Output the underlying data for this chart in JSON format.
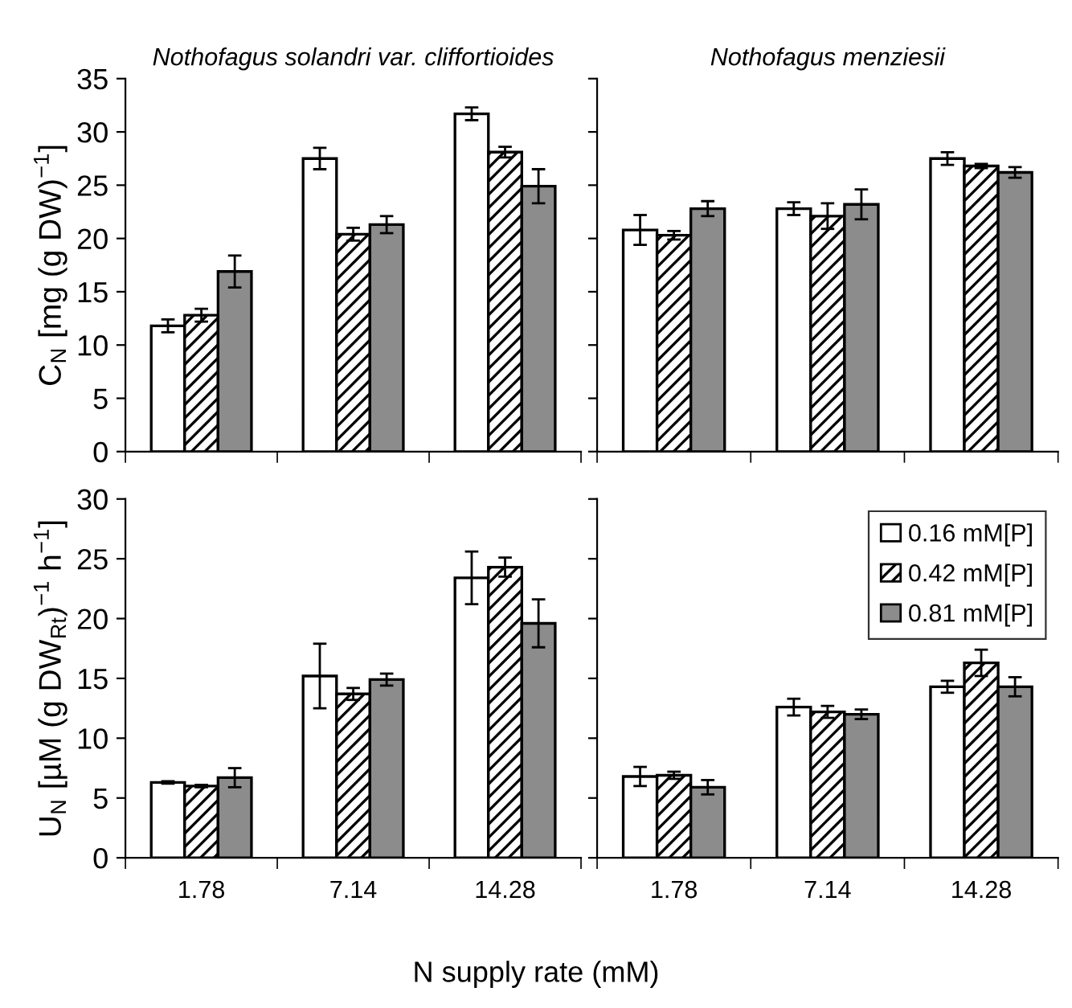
{
  "chart_data": [
    {
      "type": "bar",
      "title": "Nothofagus solandri var. cliffortioides",
      "ylabel": "C$_{N}$ [mg (g DW)$^{−1}$]",
      "categories": [
        "1.78",
        "7.14",
        "14.28"
      ],
      "ylim": [
        0,
        35
      ],
      "yticks": [
        0,
        5,
        10,
        15,
        20,
        25,
        30,
        35
      ],
      "tick_labels": "y",
      "legend": false,
      "series": [
        {
          "color": "#ffffff",
          "values": [
            11.8,
            27.5,
            31.7
          ],
          "errors": [
            0.6,
            1.0,
            0.6
          ]
        },
        {
          "color": "#000000",
          "values": [
            12.8,
            20.4,
            28.1
          ],
          "errors": [
            0.6,
            0.6,
            0.5
          ]
        },
        {
          "color": "#8c8c8c",
          "values": [
            16.9,
            21.3,
            24.9
          ],
          "errors": [
            1.5,
            0.8,
            1.6
          ]
        }
      ]
    },
    {
      "type": "bar",
      "title": "Nothofagus menziesii",
      "categories": [
        "1.78",
        "7.14",
        "14.28"
      ],
      "ylim": [
        0,
        35
      ],
      "yticks": [
        0,
        5,
        10,
        15,
        20,
        25,
        30,
        35
      ],
      "tick_labels": false,
      "legend": false,
      "series": [
        {
          "color": "#ffffff",
          "values": [
            20.8,
            22.8,
            27.5
          ],
          "errors": [
            1.4,
            0.6,
            0.6
          ]
        },
        {
          "color": "#000000",
          "values": [
            20.3,
            22.1,
            26.8
          ],
          "errors": [
            0.4,
            1.2,
            0.2
          ]
        },
        {
          "color": "#8c8c8c",
          "values": [
            22.8,
            23.2,
            26.2
          ],
          "errors": [
            0.7,
            1.4,
            0.5
          ]
        }
      ]
    },
    {
      "type": "bar",
      "ylabel": "U$_{N}$ [µM (g DW$_{Rt}$)$^{−1}$ h$^{−1}$]",
      "xlabel": "N supply rate (mM)",
      "categories": [
        "1.78",
        "7.14",
        "14.28"
      ],
      "ylim": [
        0,
        30
      ],
      "yticks": [
        0,
        5,
        10,
        15,
        20,
        25,
        30
      ],
      "legend": false,
      "series": [
        {
          "color": "#ffffff",
          "values": [
            6.3,
            15.2,
            23.4
          ],
          "errors": [
            0.1,
            2.7,
            2.2
          ]
        },
        {
          "color": "#000000",
          "values": [
            6.0,
            13.7,
            24.3
          ],
          "errors": [
            0.1,
            0.5,
            0.8
          ]
        },
        {
          "color": "#8c8c8c",
          "values": [
            6.7,
            14.9,
            19.6
          ],
          "errors": [
            0.8,
            0.5,
            2.0
          ]
        }
      ]
    },
    {
      "type": "bar",
      "categories": [
        "1.78",
        "7.14",
        "14.28"
      ],
      "ylim": [
        0,
        30
      ],
      "yticks": [
        0,
        5,
        10,
        15,
        20,
        25,
        30
      ],
      "tick_labels": "x",
      "legend": "top right",
      "series": [
        {
          "name": "0.16 mM[P]",
          "color": "#ffffff",
          "values": [
            6.8,
            12.6,
            14.3
          ],
          "errors": [
            0.8,
            0.7,
            0.5
          ]
        },
        {
          "name": "0.42 mM[P]",
          "color": "#000000",
          "values": [
            6.9,
            12.2,
            16.3
          ],
          "errors": [
            0.3,
            0.5,
            1.1
          ]
        },
        {
          "name": "0.81 mM[P]",
          "color": "#8c8c8c",
          "values": [
            5.9,
            12.0,
            14.3
          ],
          "errors": [
            0.6,
            0.4,
            0.8
          ]
        }
      ]
    }
  ]
}
